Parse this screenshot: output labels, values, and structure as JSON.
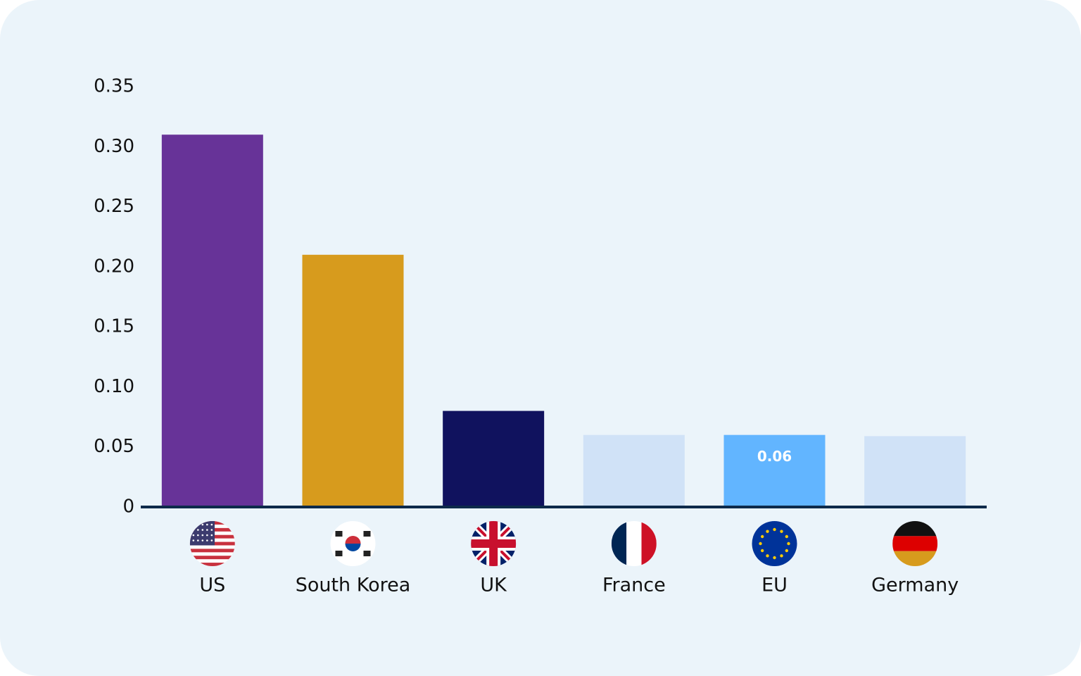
{
  "chart_data": {
    "type": "bar",
    "categories": [
      "US",
      "South Korea",
      "UK",
      "France",
      "EU",
      "Germany"
    ],
    "values": [
      0.31,
      0.21,
      0.08,
      0.06,
      0.06,
      0.059
    ],
    "value_labels": [
      null,
      null,
      null,
      null,
      "0.06",
      null
    ],
    "colors": [
      "#673398",
      "#d79b1d",
      "#10125e",
      "#d0e2f7",
      "#62b5ff",
      "#d0e2f7"
    ],
    "ylim": [
      0,
      0.35
    ],
    "yticks": [
      0,
      0.05,
      {
        "value": 0.1,
        "label": "0.10"
      },
      0.15,
      {
        "value": 0.2,
        "label": "0.20"
      },
      0.25,
      {
        "value": 0.3,
        "label": "0.30"
      },
      0.35
    ],
    "grid": false
  }
}
